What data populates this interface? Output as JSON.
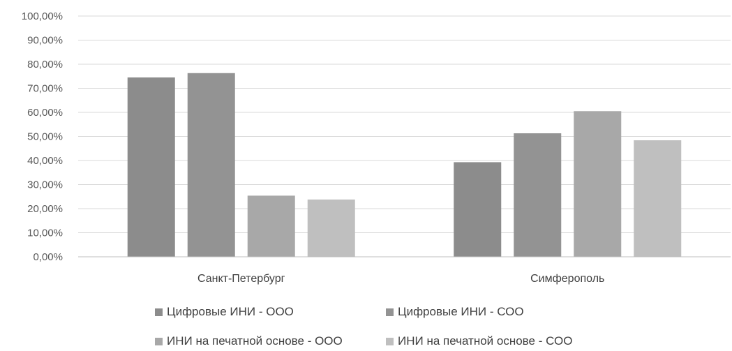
{
  "chart_data": {
    "type": "bar",
    "categories": [
      "Санкт-Петербург",
      "Симферополь"
    ],
    "series": [
      {
        "name": "Цифровые ИНИ - ООО",
        "values": [
          74.5,
          39.3
        ],
        "color": "#8c8c8c"
      },
      {
        "name": "Цифровые ИНИ - СОО",
        "values": [
          76.3,
          51.3
        ],
        "color": "#939393"
      },
      {
        "name": "ИНИ на печатной основе - ООО",
        "values": [
          25.4,
          60.5
        ],
        "color": "#a8a8a8"
      },
      {
        "name": "ИНИ на печатной основе - СОО",
        "values": [
          23.8,
          48.4
        ],
        "color": "#bfbfbf"
      }
    ],
    "ylim": [
      0,
      100
    ],
    "y_ticks": [
      "0,00%",
      "10,00%",
      "20,00%",
      "30,00%",
      "40,00%",
      "50,00%",
      "60,00%",
      "70,00%",
      "80,00%",
      "90,00%",
      "100,00%"
    ],
    "grid": true,
    "legend_position": "bottom",
    "title": "",
    "xlabel": "",
    "ylabel": ""
  }
}
